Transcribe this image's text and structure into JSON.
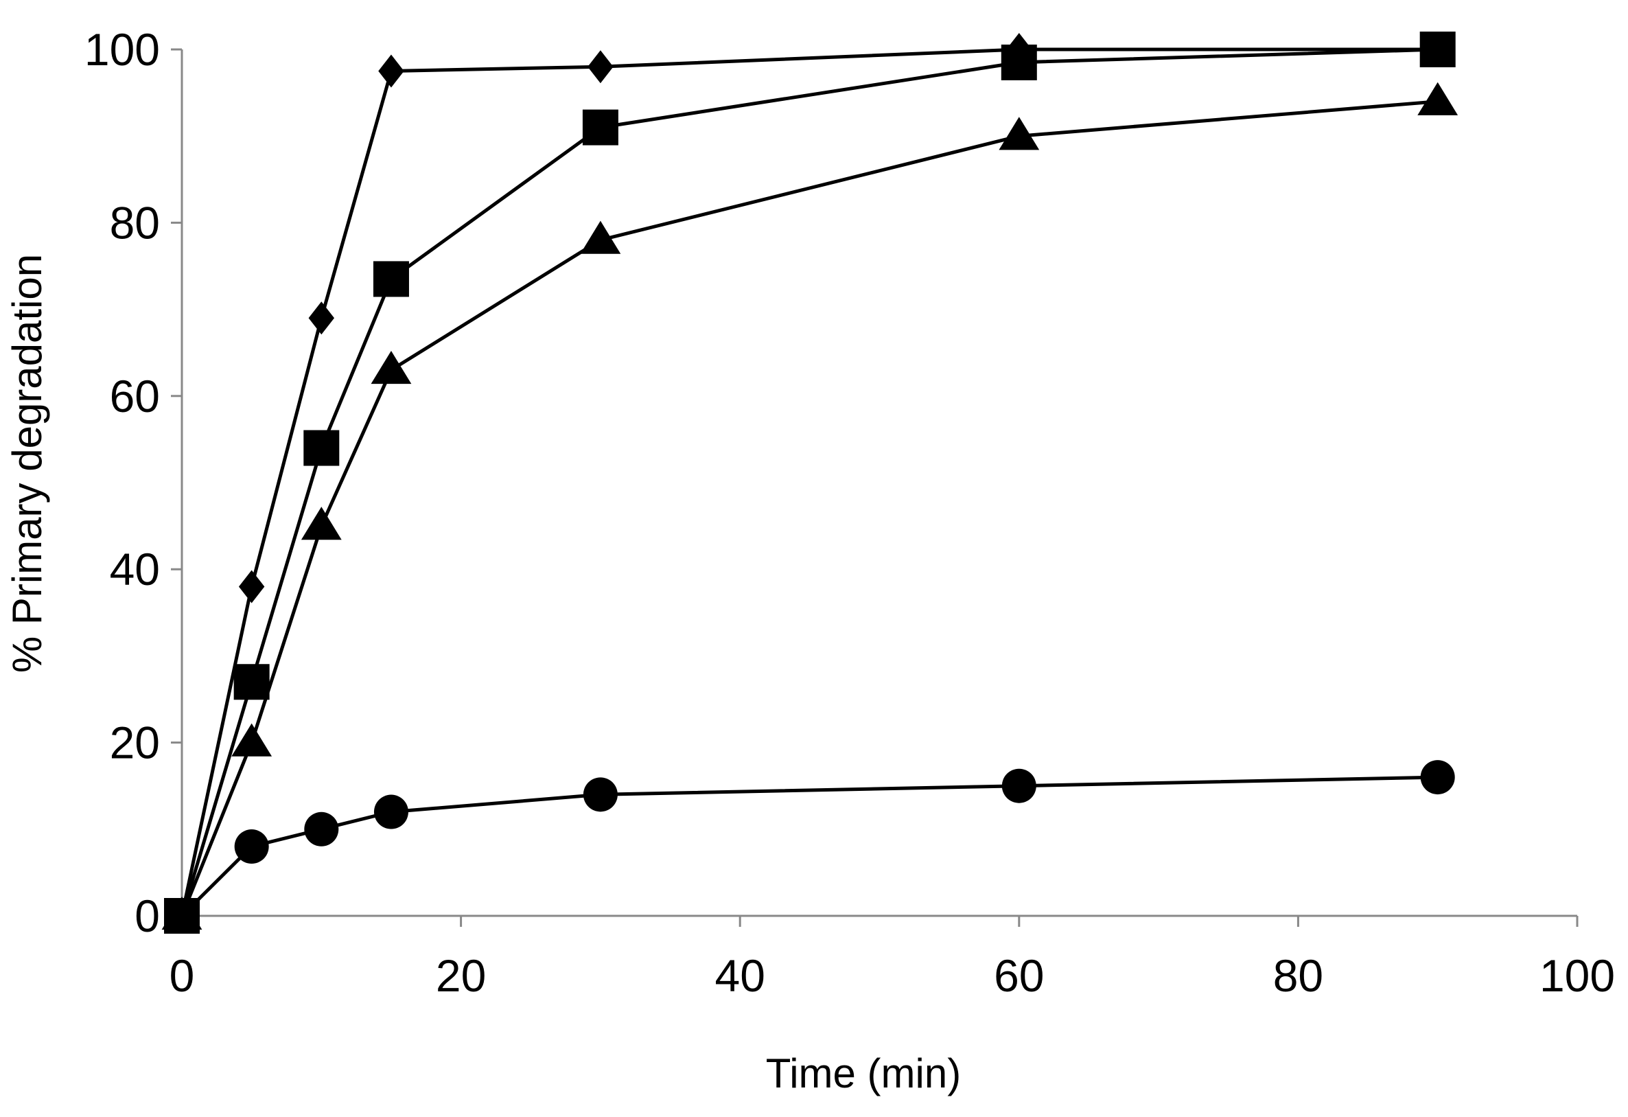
{
  "chart_data": {
    "type": "line",
    "title": "",
    "xlabel": "Time (min)",
    "ylabel": "% Primary degradation",
    "xlim": [
      0,
      100
    ],
    "ylim": [
      0,
      100
    ],
    "xticks": [
      0,
      20,
      40,
      60,
      80,
      100
    ],
    "yticks": [
      0,
      20,
      40,
      60,
      80,
      100
    ],
    "xtick_labels": [
      "0",
      "20",
      "40",
      "60",
      "80",
      "100"
    ],
    "ytick_labels": [
      "0",
      "20",
      "40",
      "60",
      "80",
      "100"
    ],
    "grid": false,
    "legend": "none",
    "colors": {
      "line": "#000000",
      "marker": "#000000",
      "axis": "#888888"
    },
    "series": [
      {
        "name": "diamond",
        "marker": "diamond",
        "x": [
          0,
          5,
          10,
          15,
          30,
          60,
          90
        ],
        "values": [
          0,
          38,
          69,
          97.5,
          98,
          100,
          100
        ]
      },
      {
        "name": "square",
        "marker": "square",
        "x": [
          0,
          5,
          10,
          15,
          30,
          60,
          90
        ],
        "values": [
          0,
          27,
          54,
          73.5,
          91,
          98.5,
          100
        ]
      },
      {
        "name": "triangle",
        "marker": "triangle",
        "x": [
          0,
          5,
          10,
          15,
          30,
          60,
          90
        ],
        "values": [
          0,
          20,
          45,
          63,
          78,
          90,
          94
        ]
      },
      {
        "name": "circle",
        "marker": "circle",
        "x": [
          0,
          5,
          10,
          15,
          30,
          60,
          90
        ],
        "values": [
          0,
          8,
          10,
          12,
          14,
          15,
          16
        ]
      }
    ]
  }
}
